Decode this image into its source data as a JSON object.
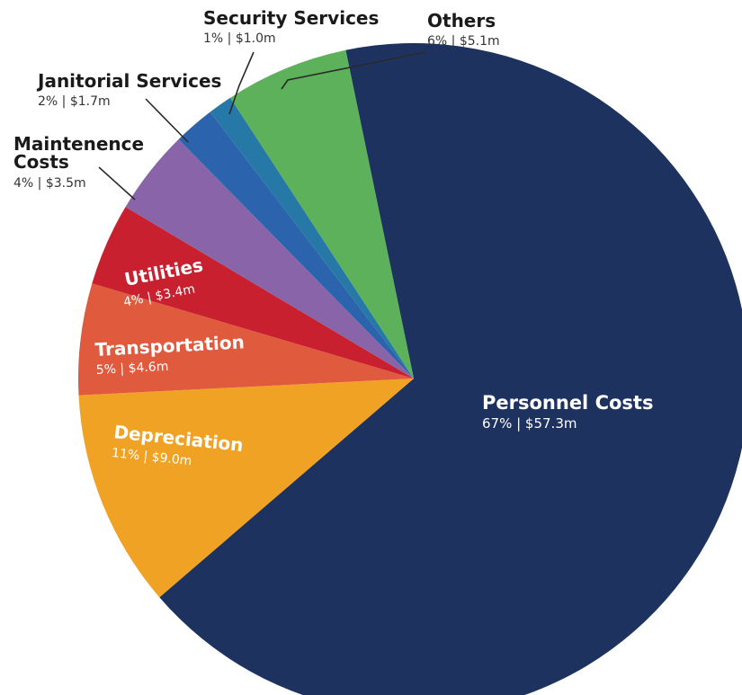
{
  "chart_data": {
    "type": "pie",
    "title": "",
    "slices": [
      {
        "label": "Personnel Costs",
        "percent_label": "67%",
        "amount_label": "$57.3m",
        "value": 57.3,
        "color": "#1e3260"
      },
      {
        "label": "Depreciation",
        "percent_label": "11%",
        "amount_label": "$9.0m",
        "value": 9.0,
        "color": "#f0a224"
      },
      {
        "label": "Transportation",
        "percent_label": "5%",
        "amount_label": "$4.6m",
        "value": 4.6,
        "color": "#e05a3e"
      },
      {
        "label": "Utilities",
        "percent_label": "4%",
        "amount_label": "$3.4m",
        "value": 3.4,
        "color": "#c8202e"
      },
      {
        "label": "Maintenence Costs",
        "percent_label": "4%",
        "amount_label": "$3.5m",
        "value": 3.5,
        "color": "#8a64a8"
      },
      {
        "label": "Janitorial Services",
        "percent_label": "2%",
        "amount_label": "$1.7m",
        "value": 1.7,
        "color": "#2b63ad"
      },
      {
        "label": "Security Services",
        "percent_label": "1%",
        "amount_label": "$1.0m",
        "value": 1.0,
        "color": "#2678a6"
      },
      {
        "label": "Others",
        "percent_label": "6%",
        "amount_label": "$5.1m",
        "value": 5.1,
        "color": "#5cb15a"
      }
    ],
    "separator": "|"
  }
}
